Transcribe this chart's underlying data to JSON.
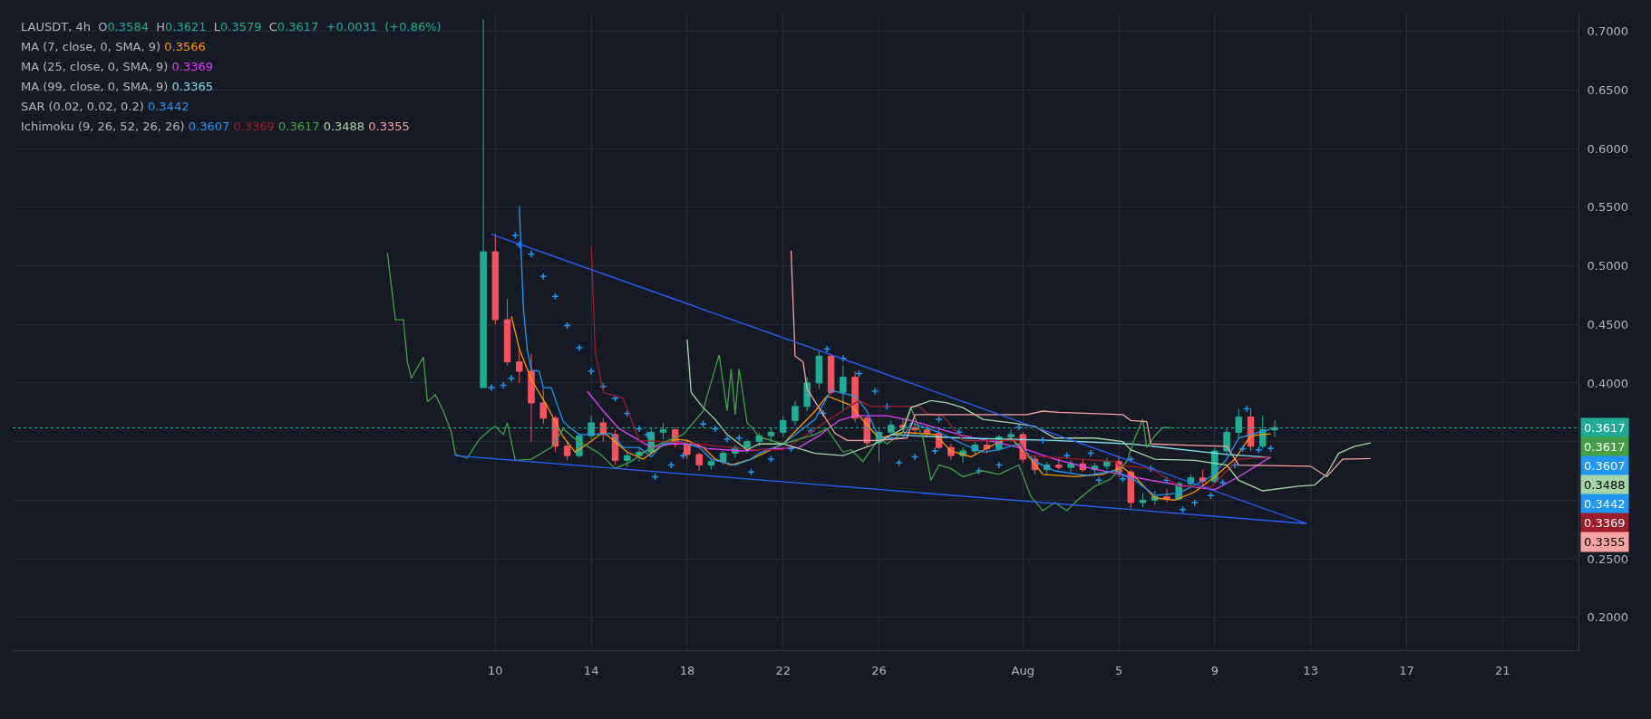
{
  "chart_data": {
    "type": "candlestick",
    "title": "LAUSDT, 4h",
    "subtitle": "O0.3584 H0.3621 L0.3579 C0.3617 +0.0031 (+0.86%)",
    "colors": [
      "#22ab94",
      "#f7525f",
      "#f7525f",
      "#f7525f",
      "#f7525f",
      "#f7525f",
      "#f7525f",
      "#f7525f",
      "#22ab94",
      "#22ab94",
      "#f7525f",
      "#f7525f",
      "#22ab94",
      "#22ab94",
      "#22ab94",
      "#22ab94",
      "#f7525f",
      "#f7525f",
      "#f7525f",
      "#22ab94",
      "#22ab94",
      "#22ab94",
      "#22ab94",
      "#22ab94",
      "#22ab94",
      "#22ab94",
      "#22ab94",
      "#22ab94",
      "#22ab94",
      "#f7525f",
      "#22ab94",
      "#f7525f",
      "#f7525f",
      "#22ab94",
      "#22ab94",
      "#f7525f",
      "#f7525f",
      "#f7525f",
      "#f7525f",
      "#f7525f",
      "#22ab94",
      "#22ab94",
      "#f7525f",
      "#22ab94",
      "#22ab94",
      "#f7525f",
      "#f7525f",
      "#22ab94",
      "#f7525f",
      "#22ab94",
      "#f7525f",
      "#22ab94",
      "#22ab94",
      "#f7525f",
      "#f7525f",
      "#22ab94",
      "#22ab94",
      "#f7525f",
      "#22ab94",
      "#22ab94",
      "#f7525f",
      "#22ab94",
      "#22ab94",
      "#22ab94",
      "#f7525f",
      "#22ab94",
      "#22ab94"
    ],
    "x": [
      "--07-09T12:00",
      "--07-10T00:00",
      "--07-10T12:00",
      "--07-11T00:00",
      "--07-11T12:00",
      "--07-12T00:00",
      "--07-12T12:00",
      "--07-13T00:00",
      "--07-13T12:00",
      "--07-14T00:00",
      "--07-14T12:00",
      "--07-15T00:00",
      "--07-15T12:00",
      "--07-16T00:00",
      "--07-16T12:00",
      "--07-17T00:00",
      "--07-17T12:00",
      "--07-18T00:00",
      "--07-18T12:00",
      "--07-19T00:00",
      "--07-19T12:00",
      "--07-20T00:00",
      "--07-20T12:00",
      "--07-21T00:00",
      "--07-21T12:00",
      "--07-22T00:00",
      "--07-22T12:00",
      "--07-23T00:00",
      "--07-23T12:00",
      "--07-24T00:00",
      "--07-24T12:00",
      "--07-25T00:00",
      "--07-25T12:00",
      "--07-26T00:00",
      "--07-26T12:00",
      "--07-27T00:00",
      "--07-27T12:00",
      "--07-28T00:00",
      "--07-28T12:00",
      "--07-29T00:00",
      "--07-29T12:00",
      "--07-30T00:00",
      "--07-30T12:00",
      "--07-31T00:00",
      "--07-31T12:00",
      "--08-01T00:00",
      "--08-01T12:00",
      "--08-02T00:00",
      "--08-02T12:00",
      "--08-03T00:00",
      "--08-03T12:00",
      "--08-04T00:00",
      "--08-04T12:00",
      "--08-05T00:00",
      "--08-05T12:00",
      "--08-06T00:00",
      "--08-06T12:00",
      "--08-07T00:00",
      "--08-07T12:00",
      "--08-08T00:00",
      "--08-08T12:00",
      "--08-09T00:00",
      "--08-09T12:00",
      "--08-10T00:00",
      "--08-10T12:00",
      "--08-11T00:00",
      "--08-11T12:00"
    ],
    "ohlc": [
      [
        0.396,
        0.71,
        0.396,
        0.512
      ],
      [
        0.512,
        0.527,
        0.45,
        0.454
      ],
      [
        0.454,
        0.472,
        0.415,
        0.418
      ],
      [
        0.418,
        0.43,
        0.4,
        0.41
      ],
      [
        0.41,
        0.425,
        0.35,
        0.383
      ],
      [
        0.383,
        0.395,
        0.365,
        0.37
      ],
      [
        0.37,
        0.372,
        0.341,
        0.346
      ],
      [
        0.346,
        0.35,
        0.334,
        0.338
      ],
      [
        0.338,
        0.357,
        0.336,
        0.355
      ],
      [
        0.355,
        0.372,
        0.352,
        0.366
      ],
      [
        0.366,
        0.37,
        0.35,
        0.356
      ],
      [
        0.356,
        0.36,
        0.33,
        0.334
      ],
      [
        0.334,
        0.342,
        0.328,
        0.338
      ],
      [
        0.338,
        0.345,
        0.333,
        0.341
      ],
      [
        0.341,
        0.362,
        0.339,
        0.358
      ],
      [
        0.358,
        0.366,
        0.352,
        0.36
      ],
      [
        0.36,
        0.362,
        0.345,
        0.348
      ],
      [
        0.348,
        0.352,
        0.335,
        0.339
      ],
      [
        0.339,
        0.341,
        0.325,
        0.33
      ],
      [
        0.33,
        0.335,
        0.326,
        0.333
      ],
      [
        0.333,
        0.342,
        0.33,
        0.34
      ],
      [
        0.34,
        0.347,
        0.336,
        0.345
      ],
      [
        0.345,
        0.352,
        0.34,
        0.35
      ],
      [
        0.35,
        0.358,
        0.346,
        0.355
      ],
      [
        0.355,
        0.362,
        0.35,
        0.358
      ],
      [
        0.358,
        0.372,
        0.354,
        0.368
      ],
      [
        0.368,
        0.385,
        0.364,
        0.38
      ],
      [
        0.38,
        0.405,
        0.376,
        0.4
      ],
      [
        0.4,
        0.428,
        0.395,
        0.423
      ],
      [
        0.423,
        0.425,
        0.39,
        0.392
      ],
      [
        0.392,
        0.415,
        0.375,
        0.405
      ],
      [
        0.405,
        0.41,
        0.367,
        0.37
      ],
      [
        0.37,
        0.372,
        0.345,
        0.349
      ],
      [
        0.349,
        0.362,
        0.333,
        0.358
      ],
      [
        0.358,
        0.368,
        0.355,
        0.364
      ],
      [
        0.364,
        0.37,
        0.358,
        0.362
      ],
      [
        0.362,
        0.366,
        0.356,
        0.36
      ],
      [
        0.36,
        0.364,
        0.355,
        0.357
      ],
      [
        0.357,
        0.362,
        0.343,
        0.345
      ],
      [
        0.345,
        0.348,
        0.334,
        0.338
      ],
      [
        0.338,
        0.345,
        0.332,
        0.342
      ],
      [
        0.342,
        0.35,
        0.338,
        0.347
      ],
      [
        0.347,
        0.352,
        0.34,
        0.344
      ],
      [
        0.344,
        0.356,
        0.342,
        0.354
      ],
      [
        0.354,
        0.36,
        0.35,
        0.356
      ],
      [
        0.356,
        0.358,
        0.332,
        0.335
      ],
      [
        0.335,
        0.338,
        0.322,
        0.326
      ],
      [
        0.326,
        0.333,
        0.322,
        0.33
      ],
      [
        0.33,
        0.336,
        0.326,
        0.328
      ],
      [
        0.328,
        0.334,
        0.323,
        0.331
      ],
      [
        0.331,
        0.335,
        0.324,
        0.326
      ],
      [
        0.326,
        0.332,
        0.322,
        0.329
      ],
      [
        0.329,
        0.336,
        0.326,
        0.333
      ],
      [
        0.333,
        0.338,
        0.32,
        0.324
      ],
      [
        0.324,
        0.326,
        0.293,
        0.298
      ],
      [
        0.298,
        0.306,
        0.294,
        0.3
      ],
      [
        0.3,
        0.308,
        0.296,
        0.303
      ],
      [
        0.303,
        0.31,
        0.298,
        0.301
      ],
      [
        0.301,
        0.316,
        0.3,
        0.314
      ],
      [
        0.314,
        0.322,
        0.31,
        0.319
      ],
      [
        0.319,
        0.326,
        0.312,
        0.316
      ],
      [
        0.316,
        0.345,
        0.315,
        0.342
      ],
      [
        0.342,
        0.362,
        0.338,
        0.358
      ],
      [
        0.358,
        0.378,
        0.352,
        0.371
      ],
      [
        0.371,
        0.378,
        0.342,
        0.346
      ],
      [
        0.346,
        0.372,
        0.344,
        0.36
      ],
      [
        0.36,
        0.368,
        0.354,
        0.362
      ]
    ],
    "series": [
      {
        "type": "line",
        "color": "#ff9800",
        "x": [
          "--07-10T16:00",
          "--07-11T00:00",
          "--07-11T12:00",
          "--07-12T04:00",
          "--07-12T20:00",
          "--07-13T08:00",
          "--07-13T20:00",
          "--07-14T12:00",
          "--07-15T00:00",
          "--07-15T12:00",
          "--07-16T04:00",
          "--07-16T20:00",
          "--07-17T12:00",
          "--07-18T00:00",
          "--07-18T16:00",
          "--07-19T04:00",
          "--07-19T20:00",
          "--07-20T16:00",
          "--07-22T00:00",
          "--07-23T08:00",
          "--07-23T20:00",
          "--07-24T20:00",
          "--07-25T08:00",
          "--07-26T00:00",
          "--07-27T00:00",
          "--07-28T08:00",
          "--07-29T00:00",
          "--07-29T20:00",
          "--07-30T20:00",
          "--07-31T12:00",
          "--08-01T08:00",
          "--08-01T20:00",
          "--08-03T04:00",
          "--08-04T08:00",
          "--08-05T04:00",
          "--08-05T16:00",
          "--08-06T12:00",
          "--08-07T08:00",
          "--08-08T04:00",
          "--08-09T00:00",
          "--08-09T20:00",
          "--08-10T12:00",
          "--08-11T08:00"
        ],
        "values": [
          0.457,
          0.429,
          0.403,
          0.38,
          0.354,
          0.341,
          0.348,
          0.358,
          0.35,
          0.341,
          0.335,
          0.345,
          0.352,
          0.351,
          0.345,
          0.335,
          0.33,
          0.335,
          0.348,
          0.376,
          0.389,
          0.381,
          0.368,
          0.353,
          0.358,
          0.356,
          0.342,
          0.337,
          0.348,
          0.353,
          0.335,
          0.322,
          0.32,
          0.322,
          0.328,
          0.32,
          0.302,
          0.3,
          0.307,
          0.32,
          0.335,
          0.355,
          0.3566
        ]
      },
      {
        "type": "line",
        "color": "#e040fb",
        "x": [
          "--07-13T20:00",
          "--07-14T12:00",
          "--07-15T04:00",
          "--07-16T00:00",
          "--07-16T12:00",
          "--07-17T08:00",
          "--07-18T04:00",
          "--07-18T20:00",
          "--07-20T08:00",
          "--07-21T00:00",
          "--07-22T16:00",
          "--07-23T12:00",
          "--07-24T08:00",
          "--07-25T00:00",
          "--07-26T08:00",
          "--07-27T08:00",
          "--07-28T08:00",
          "--07-29T12:00",
          "--07-31T00:00",
          "--08-01T04:00",
          "--08-02T08:00",
          "--08-03T16:00",
          "--08-04T20:00",
          "--08-06T08:00",
          "--08-07T12:00",
          "--08-09T00:00",
          "--08-10T00:00",
          "--08-11T08:00"
        ],
        "values": [
          0.393,
          0.376,
          0.361,
          0.351,
          0.345,
          0.348,
          0.348,
          0.344,
          0.342,
          0.343,
          0.345,
          0.355,
          0.368,
          0.372,
          0.372,
          0.368,
          0.362,
          0.355,
          0.349,
          0.343,
          0.335,
          0.328,
          0.323,
          0.317,
          0.313,
          0.309,
          0.32,
          0.3369
        ]
      },
      {
        "type": "line",
        "color": "#80deea",
        "x": [
          "--07-26T12:00",
          "--07-29T12:00",
          "--08-02T08:00",
          "--08-05T12:00",
          "--08-09T12:00",
          "--08-11T08:00"
        ],
        "values": [
          0.356,
          0.353,
          0.351,
          0.348,
          0.339,
          0.3365
        ]
      },
      {
        "type": "scatter",
        "marker": "cross",
        "color": "#2196f3",
        "x": [
          "--07-09T20:00",
          "--07-10T08:00",
          "--07-10T16:00",
          "--07-10T20:00",
          "--07-11T00:00",
          "--07-11T12:00",
          "--07-12T00:00",
          "--07-12T12:00",
          "--07-13T00:00",
          "--07-13T12:00",
          "--07-14T00:00",
          "--07-14T12:00",
          "--07-15T00:00",
          "--07-15T12:00",
          "--07-16T00:00",
          "--07-16T08:00",
          "--07-16T16:00",
          "--07-17T08:00",
          "--07-17T20:00",
          "--07-18T16:00",
          "--07-19T04:00",
          "--07-19T16:00",
          "--07-20T04:00",
          "--07-20T16:00",
          "--07-21T12:00",
          "--07-22T08:00",
          "--07-23T04:00",
          "--07-23T16:00",
          "--07-23T20:00",
          "--07-24T12:00",
          "--07-25T04:00",
          "--07-25T20:00",
          "--07-26T08:00",
          "--07-26T20:00",
          "--07-27T12:00",
          "--07-28T08:00",
          "--07-28T12:00",
          "--07-29T08:00",
          "--07-30T04:00",
          "--07-31T00:00",
          "--07-31T20:00",
          "--08-01T20:00",
          "--08-02T20:00",
          "--08-03T20:00",
          "--08-04T04:00",
          "--08-05T04:00",
          "--08-05T12:00",
          "--08-06T08:00",
          "--08-07T00:00",
          "--08-07T16:00",
          "--08-08T04:00",
          "--08-08T20:00",
          "--08-09T08:00",
          "--08-09T20:00",
          "--08-10T04:00",
          "--08-10T08:00",
          "--08-10T20:00",
          "--08-11T08:00"
        ],
        "values": [
          0.396,
          0.398,
          0.404,
          0.526,
          0.518,
          0.51,
          0.491,
          0.474,
          0.449,
          0.43,
          0.41,
          0.397,
          0.387,
          0.374,
          0.361,
          0.356,
          0.32,
          0.33,
          0.338,
          0.365,
          0.361,
          0.352,
          0.353,
          0.324,
          0.335,
          0.344,
          0.359,
          0.374,
          0.429,
          0.421,
          0.408,
          0.393,
          0.38,
          0.332,
          0.337,
          0.342,
          0.369,
          0.358,
          0.325,
          0.33,
          0.362,
          0.351,
          0.338,
          0.34,
          0.317,
          0.318,
          0.335,
          0.327,
          0.317,
          0.292,
          0.298,
          0.304,
          0.315,
          0.33,
          0.344,
          0.378,
          0.343,
          0.3442
        ]
      },
      {
        "type": "line",
        "color": "#2196f3",
        "x": [
          "--07-11T00:00",
          "--07-11T04:00",
          "--07-11T08:00",
          "--07-11T12:00",
          "--07-11T20:00",
          "--07-12T00:00",
          "--07-12T08:00",
          "--07-12T20:00",
          "--07-13T04:00",
          "--07-13T12:00",
          "--07-14T00:00",
          "--07-14T20:00",
          "--07-15T08:00",
          "--07-16T00:00",
          "--07-16T12:00",
          "--07-17T00:00",
          "--07-17T16:00",
          "--07-18T12:00",
          "--07-19T00:00",
          "--07-20T00:00",
          "--07-20T16:00",
          "--07-21T00:00",
          "--07-22T00:00",
          "--07-23T08:00",
          "--07-24T00:00",
          "--07-24T12:00",
          "--07-25T00:00",
          "--07-25T12:00",
          "--07-26T00:00",
          "--07-27T00:00",
          "--07-27T08:00",
          "--07-28T12:00",
          "--07-29T12:00",
          "--07-30T08:00",
          "--07-31T00:00",
          "--07-31T20:00",
          "--08-01T12:00",
          "--08-02T08:00",
          "--08-03T16:00",
          "--08-04T20:00",
          "--08-05T16:00",
          "--08-06T12:00",
          "--08-07T12:00",
          "--08-08T20:00",
          "--08-09T12:00",
          "--08-10T00:00",
          "--08-10T20:00",
          "--08-11T08:00"
        ],
        "values": [
          0.551,
          0.465,
          0.428,
          0.411,
          0.41,
          0.396,
          0.396,
          0.367,
          0.361,
          0.356,
          0.356,
          0.357,
          0.345,
          0.345,
          0.337,
          0.348,
          0.35,
          0.345,
          0.335,
          0.33,
          0.335,
          0.34,
          0.348,
          0.369,
          0.394,
          0.391,
          0.389,
          0.376,
          0.353,
          0.353,
          0.366,
          0.358,
          0.348,
          0.341,
          0.343,
          0.348,
          0.333,
          0.325,
          0.321,
          0.325,
          0.317,
          0.304,
          0.306,
          0.32,
          0.335,
          0.353,
          0.358,
          0.3607
        ]
      },
      {
        "type": "line",
        "color": "#9c1c2c",
        "x": [
          "--07-14T00:00",
          "--07-14T04:00",
          "--07-14T12:00",
          "--07-15T08:00",
          "--07-16T00:00",
          "--07-18T00:00",
          "--07-20T16:00",
          "--07-22T00:00",
          "--07-23T00:00",
          "--07-24T00:00",
          "--07-25T04:00",
          "--07-25T16:00",
          "--07-27T16:00",
          "--07-28T00:00",
          "--07-28T16:00",
          "--07-29T12:00",
          "--07-31T20:00",
          "--08-01T04:00",
          "--08-04T20:00",
          "--08-05T00:00",
          "--08-06T08:00",
          "--08-07T12:00",
          "--08-08T20:00",
          "--08-10T00:00",
          "--08-11T08:00"
        ],
        "values": [
          0.517,
          0.427,
          0.392,
          0.387,
          0.351,
          0.349,
          0.343,
          0.343,
          0.356,
          0.37,
          0.385,
          0.38,
          0.38,
          0.374,
          0.372,
          0.351,
          0.351,
          0.338,
          0.333,
          0.33,
          0.327,
          0.312,
          0.311,
          0.335,
          0.3369
        ]
      },
      {
        "type": "line",
        "color": "#43a047",
        "x": [
          "--07-05T12:00",
          "--07-05T20:00",
          "--07-06T04:00",
          "--07-06T08:00",
          "--07-06T12:00",
          "--07-07T00:00",
          "--07-07T04:00",
          "--07-07T12:00",
          "--07-07T20:00",
          "--07-08T04:00",
          "--07-08T08:00",
          "--07-08T20:00",
          "--07-09T08:00",
          "--07-09T20:00",
          "--07-10T00:00",
          "--07-10T08:00",
          "--07-10T12:00",
          "--07-10T20:00",
          "--07-11T12:00",
          "--07-12T08:00",
          "--07-12T20:00",
          "--07-13T08:00",
          "--07-14T08:00",
          "--07-15T00:00",
          "--07-15T16:00",
          "--07-16T12:00",
          "--07-17T20:00",
          "--07-18T16:00",
          "--07-18T20:00",
          "--07-19T08:00",
          "--07-19T16:00",
          "--07-19T20:00",
          "--07-20T00:00",
          "--07-20T04:00",
          "--07-20T12:00",
          "--07-20T16:00",
          "--07-21T00:00",
          "--07-22T00:00",
          "--07-23T08:00",
          "--07-23T20:00",
          "--07-24T12:00",
          "--07-24T20:00",
          "--07-25T08:00",
          "--07-26T00:00",
          "--07-26T08:00",
          "--07-27T00:00",
          "--07-27T08:00",
          "--07-27T20:00",
          "--07-28T04:00",
          "--07-28T12:00",
          "--07-29T00:00",
          "--07-29T12:00",
          "--07-30T08:00",
          "--07-31T00:00",
          "--07-31T20:00",
          "--08-01T08:00",
          "--08-01T20:00",
          "--08-02T08:00",
          "--08-02T20:00",
          "--08-03T08:00",
          "--08-04T00:00",
          "--08-04T16:00",
          "--08-05T08:00",
          "--08-05T16:00",
          "--08-06T00:00",
          "--08-06T04:00",
          "--08-06T12:00",
          "--08-06T20:00",
          "--08-07T04:00"
        ],
        "values": [
          0.511,
          0.454,
          0.454,
          0.418,
          0.404,
          0.422,
          0.384,
          0.39,
          0.376,
          0.358,
          0.339,
          0.336,
          0.352,
          0.361,
          0.363,
          0.356,
          0.366,
          0.334,
          0.335,
          0.345,
          0.361,
          0.352,
          0.34,
          0.327,
          0.333,
          0.345,
          0.356,
          0.376,
          0.389,
          0.424,
          0.376,
          0.412,
          0.373,
          0.412,
          0.366,
          0.363,
          0.354,
          0.348,
          0.356,
          0.361,
          0.341,
          0.343,
          0.333,
          0.353,
          0.348,
          0.358,
          0.379,
          0.353,
          0.317,
          0.33,
          0.327,
          0.32,
          0.325,
          0.322,
          0.33,
          0.303,
          0.291,
          0.298,
          0.291,
          0.301,
          0.312,
          0.318,
          0.333,
          0.353,
          0.369,
          0.345,
          0.355,
          0.362,
          0.3617
        ]
      },
      {
        "type": "line",
        "color": "#a5d6a7",
        "x": [
          "--07-18T00:00",
          "--07-18T04:00",
          "--07-18T16:00",
          "--07-19T04:00",
          "--07-19T16:00",
          "--07-20T12:00",
          "--07-21T00:00",
          "--07-22T00:00",
          "--07-23T08:00",
          "--07-24T12:00",
          "--07-25T20:00",
          "--07-27T00:00",
          "--07-27T08:00",
          "--07-28T04:00",
          "--07-28T20:00",
          "--07-29T12:00",
          "--07-30T08:00",
          "--07-31T12:00",
          "--08-01T12:00",
          "--08-02T08:00",
          "--08-04T00:00",
          "--08-05T04:00",
          "--08-05T12:00",
          "--08-06T12:00",
          "--08-08T04:00",
          "--08-09T12:00",
          "--08-10T00:00",
          "--08-11T00:00",
          "--08-12T12:00",
          "--08-13T04:00",
          "--08-13T16:00",
          "--08-14T04:00",
          "--08-14T20:00",
          "--08-15T12:00"
        ],
        "values": [
          0.437,
          0.392,
          0.379,
          0.369,
          0.356,
          0.343,
          0.348,
          0.348,
          0.34,
          0.338,
          0.348,
          0.361,
          0.379,
          0.385,
          0.383,
          0.379,
          0.369,
          0.366,
          0.363,
          0.353,
          0.353,
          0.35,
          0.343,
          0.335,
          0.334,
          0.33,
          0.317,
          0.308,
          0.312,
          0.313,
          0.322,
          0.34,
          0.346,
          0.3488
        ]
      },
      {
        "type": "line",
        "color": "#f7a1a1",
        "x": [
          "--07-22T08:00",
          "--07-22T12:00",
          "--07-22T20:00",
          "--07-23T00:00",
          "--07-23T08:00",
          "--07-24T04:00",
          "--07-24T16:00",
          "--07-26T00:00",
          "--07-27T04:00",
          "--07-27T12:00",
          "--07-28T04:00",
          "--08-01T04:00",
          "--08-01T20:00",
          "--08-02T12:00",
          "--08-05T04:00",
          "--08-05T12:00",
          "--08-06T04:00",
          "--08-06T08:00",
          "--08-07T20:00",
          "--08-09T12:00",
          "--08-10T00:00",
          "--08-13T00:00",
          "--08-13T16:00",
          "--08-14T08:00",
          "--08-15T12:00"
        ],
        "values": [
          0.513,
          0.423,
          0.418,
          0.395,
          0.384,
          0.357,
          0.351,
          0.351,
          0.353,
          0.373,
          0.373,
          0.373,
          0.376,
          0.375,
          0.373,
          0.368,
          0.367,
          0.348,
          0.347,
          0.346,
          0.33,
          0.329,
          0.32,
          0.335,
          0.3355
        ]
      },
      {
        "type": "line",
        "color": "#2962ff",
        "x": [
          "--07-09T20:00",
          "--08-12T20:00"
        ],
        "values": [
          0.527,
          0.28
        ]
      },
      {
        "type": "line",
        "color": "#2962ff",
        "x": [
          "--07-08T08:00",
          "--08-12T20:00"
        ],
        "values": [
          0.338,
          0.28
        ]
      }
    ],
    "xlim": [
      "--06-19T21:00",
      "--08-24T04:00"
    ],
    "xticks": [
      {
        "value": "--07-10",
        "label": "10"
      },
      {
        "value": "--07-14",
        "label": "14"
      },
      {
        "value": "--07-18",
        "label": "18"
      },
      {
        "value": "--07-22",
        "label": "22"
      },
      {
        "value": "--07-26",
        "label": "26"
      },
      {
        "value": "--08-01",
        "label": "Aug"
      },
      {
        "value": "--08-05",
        "label": "5"
      },
      {
        "value": "--08-09",
        "label": "9"
      },
      {
        "value": "--08-13",
        "label": "13"
      },
      {
        "value": "--08-17",
        "label": "17"
      },
      {
        "value": "--08-21",
        "label": "21"
      }
    ],
    "ylim": [
      0.172,
      0.716
    ],
    "yticks": [
      {
        "value": 0.2,
        "label": "0.2000"
      },
      {
        "value": 0.25,
        "label": "0.2500"
      },
      {
        "value": 0.3,
        "label": null
      },
      {
        "value": 0.35,
        "label": null
      },
      {
        "value": 0.4,
        "label": "0.4000"
      },
      {
        "value": 0.45,
        "label": "0.4500"
      },
      {
        "value": 0.5,
        "label": "0.5000"
      },
      {
        "value": 0.55,
        "label": "0.5500"
      },
      {
        "value": 0.6,
        "label": "0.6000"
      },
      {
        "value": 0.65,
        "label": "0.6500"
      },
      {
        "value": 0.7,
        "label": "0.7000"
      }
    ],
    "grid": true,
    "ref_lines": [
      {
        "axis": "y",
        "value": 0.3617,
        "label": "0.3617",
        "color": "#22ab94",
        "line_style": "dotted"
      }
    ],
    "annotations": [
      "MA (7, close, 0, SMA, 9) 0.3566",
      "MA (25, close, 0, SMA, 9) 0.3369",
      "MA (99, close, 0, SMA, 9) 0.3365",
      "SAR (0.02, 0.02, 0.2) 0.3442",
      "Ichimoku (9, 26, 52, 26, 26) 0.3607 0.3369 0.3617 0.3488 0.3355",
      "0.3617",
      "0.3607",
      "0.3488",
      "0.3442",
      "0.3369",
      "0.3355"
    ]
  }
}
